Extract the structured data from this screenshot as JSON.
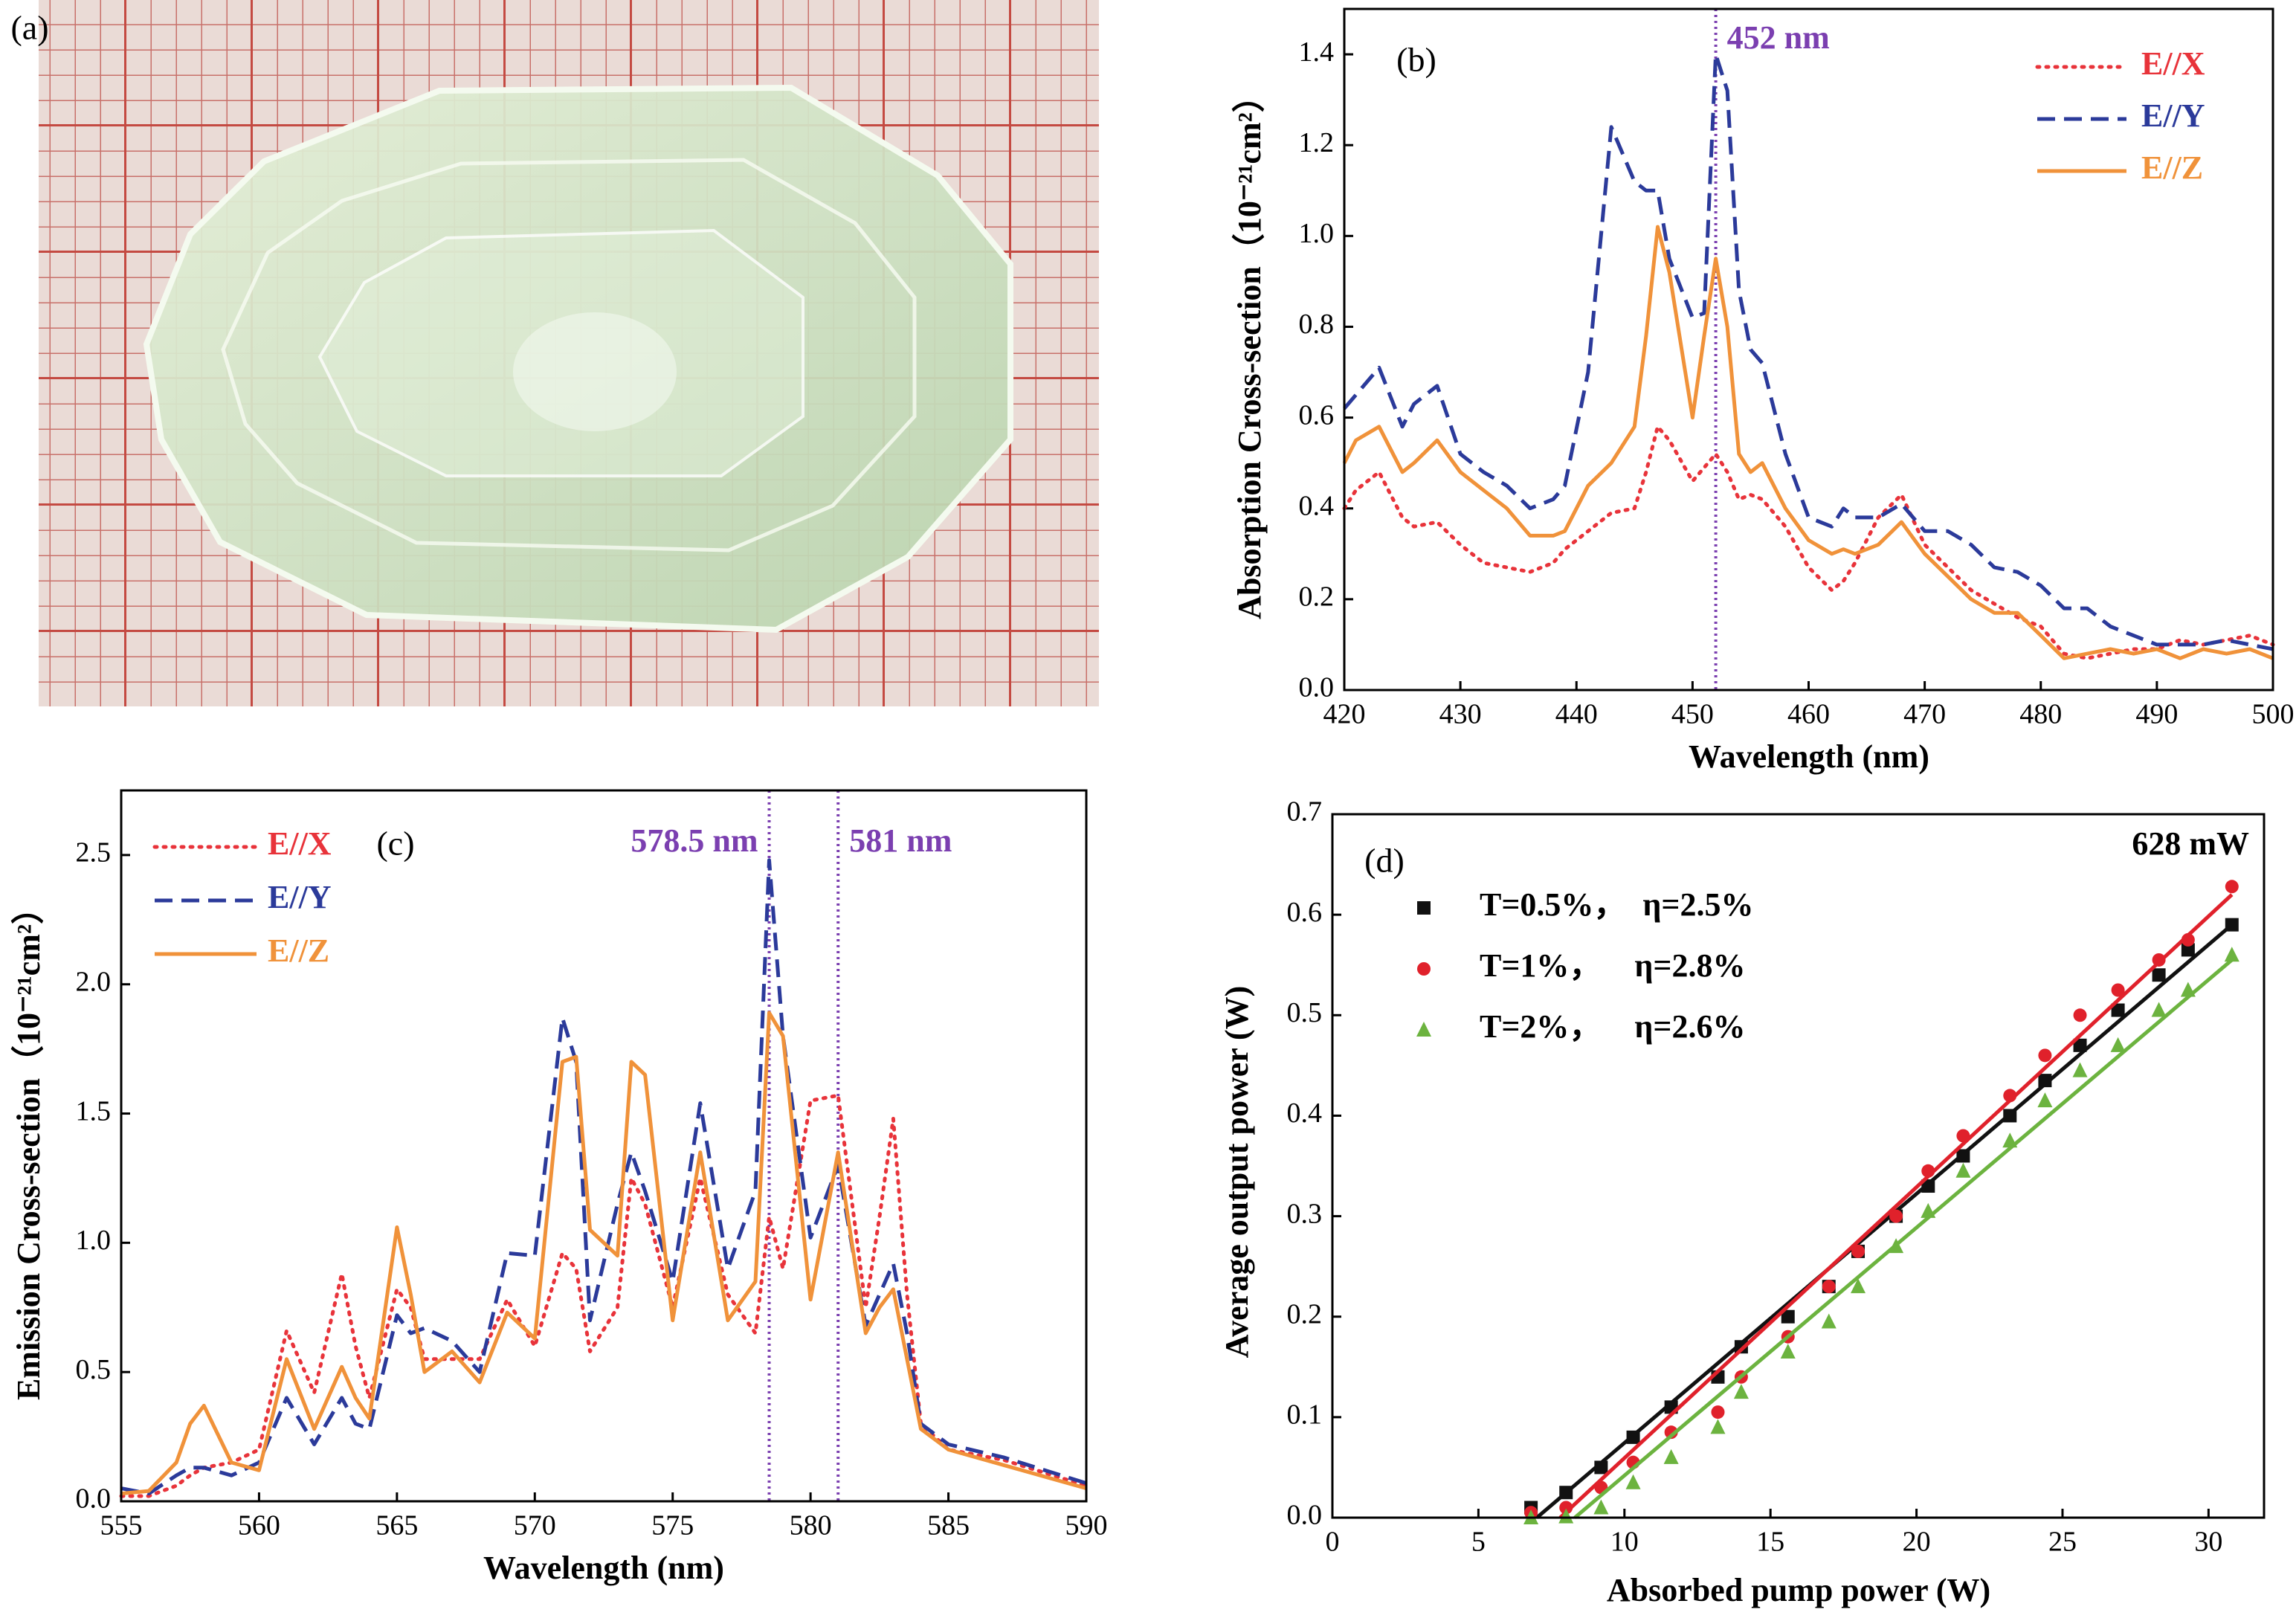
{
  "chart_data": [
    {
      "type": "image",
      "label": "(a)"
    },
    {
      "type": "line",
      "label": "(b)",
      "xlabel": "Wavelength (nm)",
      "ylabel": "Absorption Cross-section（10⁻²¹cm²）",
      "xlim": [
        420,
        500
      ],
      "xticks": [
        420,
        430,
        440,
        450,
        460,
        470,
        480,
        490,
        500
      ],
      "ylim": [
        0,
        1.5
      ],
      "yticks": [
        {
          "value": 0,
          "label": "0.0"
        },
        0.2,
        0.4,
        0.6,
        0.8,
        {
          "value": 1,
          "label": "1.0"
        },
        1.2,
        1.4
      ],
      "legend": "upper right",
      "annotation_color": "#7b3fb0",
      "vlines": [
        {
          "x": 452,
          "label": "452 nm"
        }
      ],
      "x": [
        420,
        421,
        423,
        425,
        426,
        428,
        430,
        432,
        434,
        436,
        438,
        439,
        441,
        443,
        445,
        446,
        447,
        448,
        450,
        451,
        452,
        453,
        454,
        455,
        456,
        458,
        460,
        462,
        463,
        464,
        466,
        468,
        470,
        472,
        474,
        476,
        478,
        480,
        482,
        484,
        486,
        488,
        490,
        492,
        494,
        496,
        498,
        500
      ],
      "series": [
        {
          "name": "E//X",
          "color": "#e8333a",
          "dash": "dotted",
          "values": [
            0.4,
            0.44,
            0.48,
            0.38,
            0.36,
            0.37,
            0.32,
            0.28,
            0.27,
            0.26,
            0.28,
            0.31,
            0.35,
            0.39,
            0.4,
            0.48,
            0.58,
            0.55,
            0.46,
            0.49,
            0.52,
            0.48,
            0.42,
            0.43,
            0.42,
            0.36,
            0.27,
            0.22,
            0.24,
            0.28,
            0.38,
            0.43,
            0.32,
            0.27,
            0.22,
            0.19,
            0.16,
            0.14,
            0.08,
            0.07,
            0.08,
            0.09,
            0.09,
            0.11,
            0.1,
            0.11,
            0.12,
            0.1
          ]
        },
        {
          "name": "E//Y",
          "color": "#2b3a9a",
          "dash": "dashed",
          "values": [
            0.62,
            0.65,
            0.71,
            0.58,
            0.63,
            0.67,
            0.52,
            0.48,
            0.45,
            0.4,
            0.42,
            0.45,
            0.7,
            1.24,
            1.12,
            1.1,
            1.1,
            0.95,
            0.82,
            0.83,
            1.4,
            1.32,
            0.88,
            0.75,
            0.72,
            0.52,
            0.38,
            0.36,
            0.4,
            0.38,
            0.38,
            0.41,
            0.35,
            0.35,
            0.32,
            0.27,
            0.26,
            0.23,
            0.18,
            0.18,
            0.14,
            0.12,
            0.1,
            0.1,
            0.1,
            0.11,
            0.1,
            0.09
          ]
        },
        {
          "name": "E//Z",
          "color": "#f0923a",
          "dash": "solid",
          "values": [
            0.5,
            0.55,
            0.58,
            0.48,
            0.5,
            0.55,
            0.48,
            0.44,
            0.4,
            0.34,
            0.34,
            0.35,
            0.45,
            0.5,
            0.58,
            0.78,
            1.02,
            0.92,
            0.6,
            0.78,
            0.95,
            0.8,
            0.52,
            0.48,
            0.5,
            0.4,
            0.33,
            0.3,
            0.31,
            0.3,
            0.32,
            0.37,
            0.3,
            0.25,
            0.2,
            0.17,
            0.17,
            0.12,
            0.07,
            0.08,
            0.09,
            0.08,
            0.09,
            0.07,
            0.09,
            0.08,
            0.09,
            0.07
          ]
        }
      ]
    },
    {
      "type": "line",
      "label": "(c)",
      "xlabel": "Wavelength (nm)",
      "ylabel": "Emission Cross-section（10⁻²¹cm²）",
      "xlim": [
        555,
        590
      ],
      "xticks": [
        555,
        560,
        565,
        570,
        575,
        580,
        585,
        590
      ],
      "ylim": [
        0,
        2.75
      ],
      "yticks": [
        {
          "value": 0,
          "label": "0.0"
        },
        0.5,
        {
          "value": 1,
          "label": "1.0"
        },
        1.5,
        {
          "value": 2,
          "label": "2.0"
        },
        2.5
      ],
      "legend": "upper left",
      "annotation_color": "#7b3fb0",
      "vlines": [
        {
          "x": 578.5,
          "label": "578.5 nm"
        },
        {
          "x": 581,
          "label": "581 nm"
        }
      ],
      "x": [
        555,
        556,
        557,
        557.5,
        558,
        559,
        560,
        561,
        562,
        563,
        563.5,
        564,
        565,
        565.5,
        566,
        567,
        568,
        569,
        570,
        571,
        571.5,
        572,
        573,
        573.5,
        574,
        575,
        576,
        577,
        578,
        578.5,
        579,
        580,
        581,
        582,
        582.5,
        583,
        583.5,
        584,
        585,
        587,
        590
      ],
      "series": [
        {
          "name": "E//X",
          "color": "#e8333a",
          "dash": "dotted",
          "values": [
            0.02,
            0.02,
            0.06,
            0.1,
            0.13,
            0.15,
            0.2,
            0.66,
            0.42,
            0.88,
            0.6,
            0.4,
            0.82,
            0.75,
            0.55,
            0.55,
            0.55,
            0.78,
            0.6,
            0.96,
            0.9,
            0.58,
            0.75,
            1.25,
            1.15,
            0.75,
            1.25,
            0.8,
            0.65,
            1.1,
            0.9,
            1.55,
            1.57,
            0.75,
            1.1,
            1.48,
            0.8,
            0.3,
            0.2,
            0.16,
            0.06
          ]
        },
        {
          "name": "E//Y",
          "color": "#2b3a9a",
          "dash": "dashed",
          "values": [
            0.05,
            0.03,
            0.1,
            0.13,
            0.13,
            0.1,
            0.15,
            0.4,
            0.22,
            0.4,
            0.3,
            0.28,
            0.72,
            0.65,
            0.67,
            0.62,
            0.5,
            0.96,
            0.95,
            1.87,
            1.7,
            0.7,
            1.15,
            1.35,
            1.2,
            0.85,
            1.54,
            0.9,
            1.2,
            2.48,
            1.8,
            1.02,
            1.3,
            0.68,
            0.8,
            0.92,
            0.65,
            0.3,
            0.22,
            0.17,
            0.07
          ]
        },
        {
          "name": "E//Z",
          "color": "#f0923a",
          "dash": "solid",
          "values": [
            0.03,
            0.04,
            0.15,
            0.3,
            0.37,
            0.15,
            0.12,
            0.55,
            0.28,
            0.52,
            0.4,
            0.32,
            1.06,
            0.8,
            0.5,
            0.58,
            0.46,
            0.73,
            0.63,
            1.7,
            1.72,
            1.05,
            0.95,
            1.7,
            1.65,
            0.7,
            1.35,
            0.7,
            0.85,
            1.89,
            1.8,
            0.78,
            1.35,
            0.65,
            0.75,
            0.82,
            0.55,
            0.28,
            0.2,
            0.14,
            0.05
          ]
        }
      ]
    },
    {
      "type": "scatter",
      "label": "(d)",
      "annotation": "628 mW",
      "xlabel": "Absorbed pump power (W)",
      "ylabel": "Average output power (W)",
      "xlim": [
        0,
        31.9
      ],
      "xticks": [
        0,
        5,
        10,
        15,
        20,
        25,
        30
      ],
      "ylim": [
        0,
        0.7
      ],
      "yticks": [
        {
          "value": 0,
          "label": "0.0"
        },
        0.1,
        0.2,
        0.3,
        0.4,
        0.5,
        0.6,
        0.7
      ],
      "legend": "upper left",
      "series": [
        {
          "name": "T=0.5%，  η=2.5%",
          "color": "#111111",
          "marker": "square",
          "x": [
            6.8,
            8,
            9.2,
            10.3,
            11.6,
            13.2,
            14,
            15.6,
            17,
            18,
            19.3,
            20.4,
            21.6,
            23.2,
            24.4,
            25.6,
            26.9,
            28.3,
            29.3,
            30.8
          ],
          "values": [
            0.01,
            0.025,
            0.05,
            0.08,
            0.11,
            0.14,
            0.17,
            0.2,
            0.23,
            0.265,
            0.3,
            0.33,
            0.36,
            0.4,
            0.435,
            0.47,
            0.505,
            0.54,
            0.565,
            0.59
          ],
          "fit_x": [
            7.0,
            30.8
          ],
          "fit_y": [
            0,
            0.59
          ]
        },
        {
          "name": "T=1%，    η=2.8%",
          "color": "#e0212b",
          "marker": "circle",
          "x": [
            6.8,
            8,
            9.2,
            10.3,
            11.6,
            13.2,
            14,
            15.6,
            17,
            18,
            19.3,
            20.4,
            21.6,
            23.2,
            24.4,
            25.6,
            26.9,
            28.3,
            29.3,
            30.8
          ],
          "values": [
            0.005,
            0.01,
            0.03,
            0.055,
            0.085,
            0.105,
            0.14,
            0.18,
            0.23,
            0.265,
            0.3,
            0.345,
            0.38,
            0.42,
            0.46,
            0.5,
            0.525,
            0.555,
            0.575,
            0.628
          ],
          "fit_x": [
            7.8,
            30.8
          ],
          "fit_y": [
            0,
            0.62
          ]
        },
        {
          "name": "T=2%，    η=2.6%",
          "color": "#6cb33f",
          "marker": "triangle",
          "x": [
            6.8,
            8,
            9.2,
            10.3,
            11.6,
            13.2,
            14,
            15.6,
            17,
            18,
            19.3,
            20.4,
            21.6,
            23.2,
            24.4,
            25.6,
            26.9,
            28.3,
            29.3,
            30.8
          ],
          "values": [
            0,
            0.001,
            0.01,
            0.035,
            0.06,
            0.09,
            0.125,
            0.165,
            0.195,
            0.23,
            0.27,
            0.305,
            0.345,
            0.375,
            0.415,
            0.445,
            0.47,
            0.505,
            0.525,
            0.56
          ],
          "fit_x": [
            8.3,
            30.8
          ],
          "fit_y": [
            0,
            0.555
          ]
        }
      ]
    }
  ]
}
